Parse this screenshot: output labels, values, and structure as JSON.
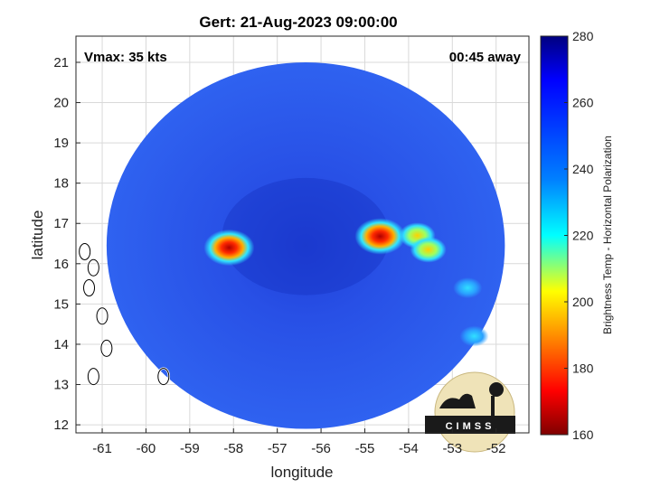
{
  "chart_data": {
    "type": "heatmap",
    "title": "Gert: 21-Aug-2023 09:00:00",
    "xlabel": "longitude",
    "ylabel": "latitude",
    "xlim": [
      -61.6,
      -51.25
    ],
    "ylim": [
      11.8,
      21.65
    ],
    "x_ticks": [
      -61,
      -60,
      -59,
      -58,
      -57,
      -56,
      -55,
      -54,
      -53,
      -52
    ],
    "y_ticks": [
      12,
      13,
      14,
      15,
      16,
      17,
      18,
      19,
      20,
      21
    ],
    "grid": true,
    "annotations": {
      "vmax": "Vmax: 35 kts",
      "time_away": "00:45 away"
    },
    "colorbar": {
      "label": "Brightness Temp - Horizontal Polarization",
      "range": [
        160,
        280
      ],
      "ticks": [
        160,
        180,
        200,
        220,
        240,
        260,
        280
      ],
      "colormap": "jet"
    },
    "swath": {
      "center_lon": -56.35,
      "center_lat": 16.45,
      "radius_deg": 4.55,
      "background_temp": 262
    },
    "features": [
      {
        "lon": -58.1,
        "lat": 16.4,
        "temp": 176
      },
      {
        "lon": -54.65,
        "lat": 16.68,
        "temp": 172
      },
      {
        "lon": -53.8,
        "lat": 16.7,
        "temp": 205
      },
      {
        "lon": -53.55,
        "lat": 16.35,
        "temp": 215
      },
      {
        "lon": -52.65,
        "lat": 15.4,
        "temp": 240
      },
      {
        "lon": -52.5,
        "lat": 14.2,
        "temp": 225
      }
    ],
    "coastlines": [
      {
        "lon": -61.4,
        "lat": 16.3
      },
      {
        "lon": -61.2,
        "lat": 15.9
      },
      {
        "lon": -61.3,
        "lat": 15.4
      },
      {
        "lon": -61.0,
        "lat": 14.7
      },
      {
        "lon": -60.9,
        "lat": 13.9
      },
      {
        "lon": -61.2,
        "lat": 13.2
      },
      {
        "lon": -59.6,
        "lat": 13.2
      }
    ]
  },
  "logo": {
    "text": "CIMSS"
  }
}
